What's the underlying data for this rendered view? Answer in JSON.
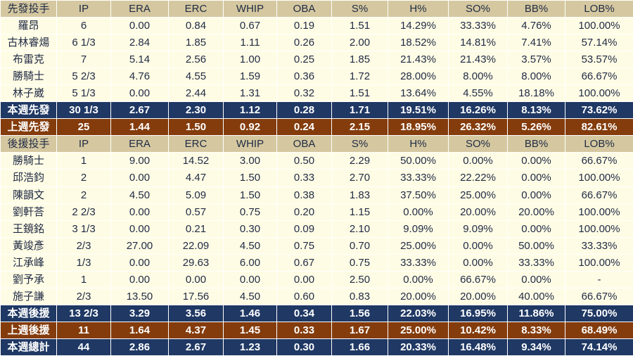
{
  "colors": {
    "header_bg": "#d5c8a0",
    "data_bg": "#fffce5",
    "week_bg": "#1f3864",
    "lastweek_bg": "#843c0c",
    "data_text": "#1f2a44",
    "summary_text": "#ffffff",
    "grid": "#ffffff"
  },
  "chart_data": {
    "type": "table",
    "title": "Pitching statistics (starters and relievers) weekly report",
    "column_headers": [
      "先發投手",
      "IP",
      "ERA",
      "ERC",
      "WHIP",
      "OBA",
      "S%",
      "H%",
      "SO%",
      "BB%",
      "LOB%"
    ],
    "rows": [
      {
        "type": "header",
        "cells": [
          "先發投手",
          "IP",
          "ERA",
          "ERC",
          "WHIP",
          "OBA",
          "S%",
          "H%",
          "SO%",
          "BB%",
          "LOB%"
        ]
      },
      {
        "type": "player",
        "cells": [
          "羅昂",
          "6",
          "0.00",
          "0.84",
          "0.67",
          "0.19",
          "1.51",
          "14.29%",
          "33.33%",
          "4.76%",
          "100.00%"
        ]
      },
      {
        "type": "player",
        "cells": [
          "古林睿煬",
          "6 1/3",
          "2.84",
          "1.85",
          "1.11",
          "0.26",
          "2.00",
          "18.52%",
          "14.81%",
          "7.41%",
          "57.14%"
        ]
      },
      {
        "type": "player",
        "cells": [
          "布雷克",
          "7",
          "5.14",
          "2.56",
          "1.00",
          "0.25",
          "1.85",
          "21.43%",
          "21.43%",
          "3.57%",
          "53.57%"
        ]
      },
      {
        "type": "player",
        "cells": [
          "勝騎士",
          "5 2/3",
          "4.76",
          "4.55",
          "1.59",
          "0.36",
          "1.72",
          "28.00%",
          "8.00%",
          "8.00%",
          "66.67%"
        ]
      },
      {
        "type": "player",
        "cells": [
          "林子崴",
          "5 1/3",
          "0.00",
          "2.44",
          "1.31",
          "0.32",
          "1.51",
          "13.64%",
          "4.55%",
          "18.18%",
          "100.00%"
        ]
      },
      {
        "type": "week-total",
        "cells": [
          "本週先發",
          "30 1/3",
          "2.67",
          "2.30",
          "1.12",
          "0.28",
          "1.71",
          "19.51%",
          "16.26%",
          "8.13%",
          "73.62%"
        ]
      },
      {
        "type": "lastweek-total",
        "cells": [
          "上週先發",
          "25",
          "1.44",
          "1.50",
          "0.92",
          "0.24",
          "2.15",
          "18.95%",
          "26.32%",
          "5.26%",
          "82.61%"
        ]
      },
      {
        "type": "header",
        "cells": [
          "後援投手",
          "IP",
          "ERA",
          "ERC",
          "WHIP",
          "OBA",
          "S%",
          "H%",
          "SO%",
          "BB%",
          "LOB%"
        ]
      },
      {
        "type": "player",
        "cells": [
          "勝騎士",
          "1",
          "9.00",
          "14.52",
          "3.00",
          "0.50",
          "2.29",
          "50.00%",
          "0.00%",
          "0.00%",
          "66.67%"
        ]
      },
      {
        "type": "player",
        "cells": [
          "邱浩鈞",
          "2",
          "0.00",
          "4.47",
          "1.50",
          "0.33",
          "2.70",
          "33.33%",
          "22.22%",
          "0.00%",
          "100.00%"
        ]
      },
      {
        "type": "player",
        "cells": [
          "陳韻文",
          "2",
          "4.50",
          "5.09",
          "1.50",
          "0.38",
          "1.83",
          "37.50%",
          "25.00%",
          "0.00%",
          "66.67%"
        ]
      },
      {
        "type": "player",
        "cells": [
          "劉軒荅",
          "2 2/3",
          "0.00",
          "0.57",
          "0.75",
          "0.20",
          "1.15",
          "0.00%",
          "20.00%",
          "20.00%",
          "100.00%"
        ]
      },
      {
        "type": "player",
        "cells": [
          "王鏡銘",
          "3 1/3",
          "0.00",
          "0.21",
          "0.30",
          "0.09",
          "2.10",
          "9.09%",
          "9.09%",
          "0.00%",
          "100.00%"
        ]
      },
      {
        "type": "player",
        "cells": [
          "黃竣彥",
          "2/3",
          "27.00",
          "22.09",
          "4.50",
          "0.75",
          "0.70",
          "25.00%",
          "0.00%",
          "50.00%",
          "33.33%"
        ]
      },
      {
        "type": "player",
        "cells": [
          "江承峰",
          "1/3",
          "0.00",
          "29.63",
          "6.00",
          "0.67",
          "0.75",
          "33.33%",
          "0.00%",
          "33.33%",
          "100.00%"
        ]
      },
      {
        "type": "player",
        "cells": [
          "劉予承",
          "1",
          "0.00",
          "0.00",
          "0.00",
          "0.00",
          "2.50",
          "0.00%",
          "66.67%",
          "0.00%",
          "-"
        ]
      },
      {
        "type": "player",
        "cells": [
          "施子謙",
          "2/3",
          "13.50",
          "17.56",
          "4.50",
          "0.60",
          "0.83",
          "20.00%",
          "20.00%",
          "40.00%",
          "66.67%"
        ]
      },
      {
        "type": "week-total",
        "cells": [
          "本週後援",
          "13 2/3",
          "3.29",
          "3.56",
          "1.46",
          "0.34",
          "1.56",
          "22.03%",
          "16.95%",
          "11.86%",
          "75.00%"
        ]
      },
      {
        "type": "lastweek-total",
        "cells": [
          "上週後援",
          "11",
          "1.64",
          "4.37",
          "1.45",
          "0.33",
          "1.67",
          "25.00%",
          "10.42%",
          "8.33%",
          "68.49%"
        ]
      },
      {
        "type": "week-total",
        "cells": [
          "本週總計",
          "44",
          "2.86",
          "2.67",
          "1.23",
          "0.30",
          "1.66",
          "20.33%",
          "16.48%",
          "9.34%",
          "74.14%"
        ]
      }
    ]
  }
}
